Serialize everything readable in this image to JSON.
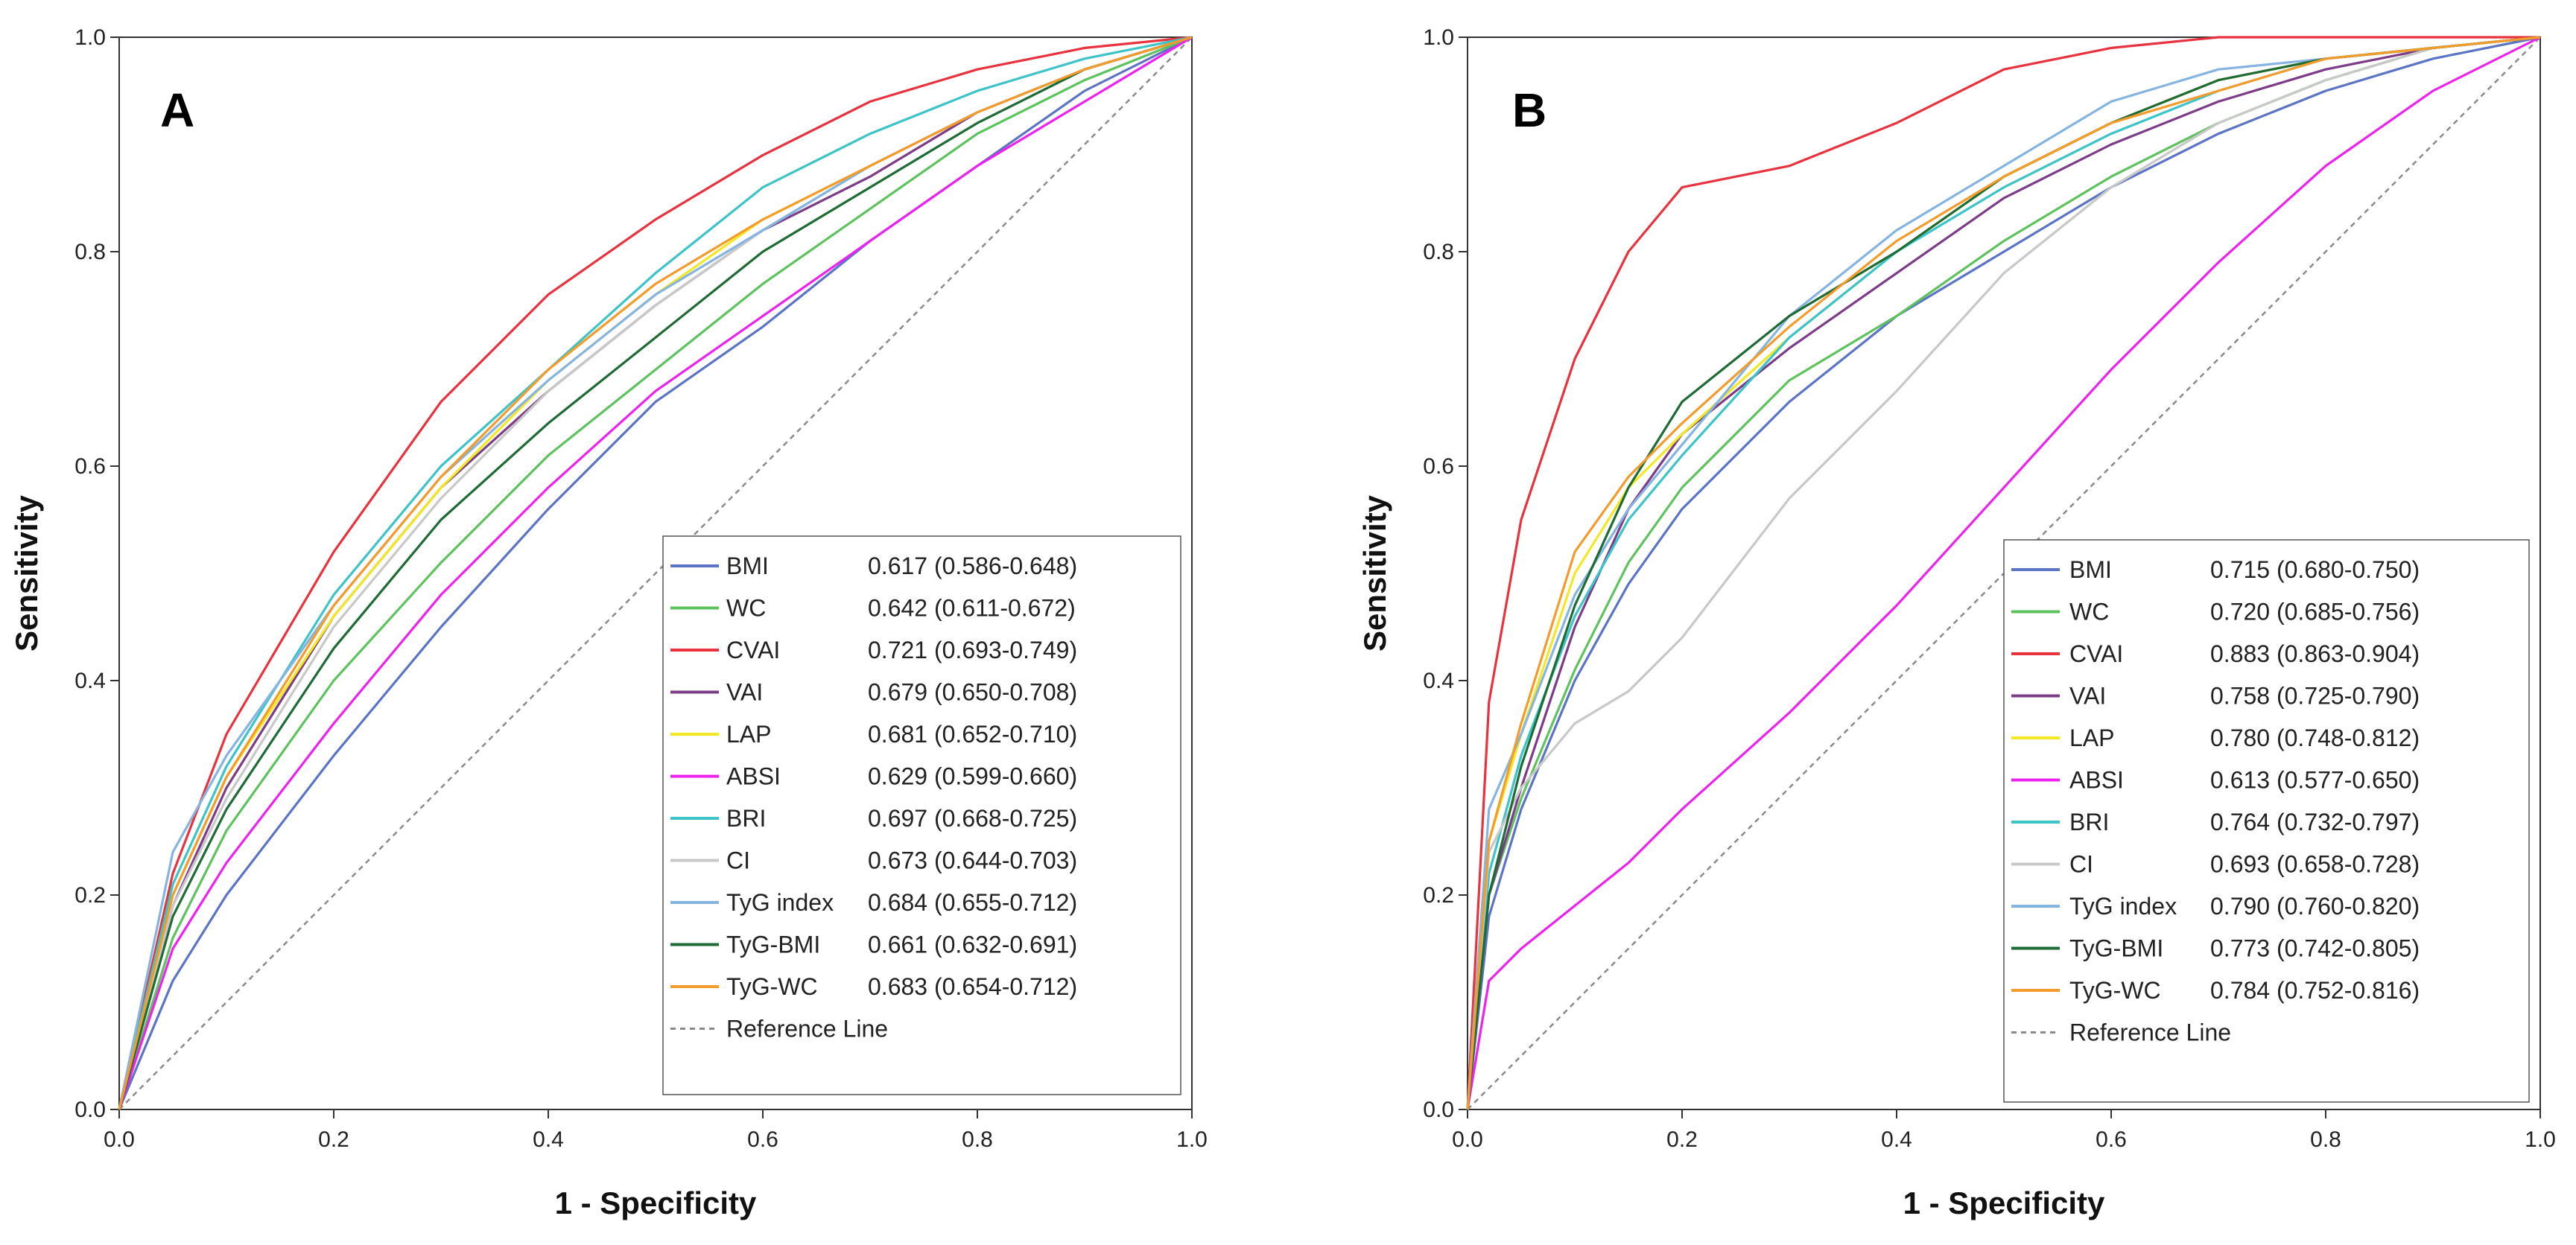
{
  "figure_panels": [
    {
      "letter": "A",
      "xlabel": "1 - Specificity",
      "ylabel": "Sensitivity"
    },
    {
      "letter": "B",
      "xlabel": "1 - Specificity",
      "ylabel": "Sensitivity"
    }
  ],
  "chart_data": [
    {
      "type": "line",
      "panel": "A",
      "title": "",
      "xlabel": "1 - Specificity",
      "ylabel": "Sensitivity",
      "xlim": [
        0.0,
        1.0
      ],
      "ylim": [
        0.0,
        1.0
      ],
      "xticks": [
        "0.0",
        "0.2",
        "0.4",
        "0.6",
        "0.8",
        "1.0"
      ],
      "yticks": [
        "0.0",
        "0.2",
        "0.4",
        "0.6",
        "0.8",
        "1.0"
      ],
      "grid": false,
      "legend_position": "bottom-right",
      "reference_line_label": "Reference Line",
      "series": [
        {
          "name": "BMI",
          "auc": "0.617 (0.586-0.648)",
          "color": "#5b74c3",
          "x": [
            0,
            0.05,
            0.1,
            0.2,
            0.3,
            0.4,
            0.5,
            0.6,
            0.7,
            0.8,
            0.9,
            1.0
          ],
          "y": [
            0,
            0.12,
            0.2,
            0.33,
            0.45,
            0.56,
            0.66,
            0.73,
            0.81,
            0.88,
            0.95,
            1.0
          ]
        },
        {
          "name": "WC",
          "auc": "0.642 (0.611-0.672)",
          "color": "#5ec25e",
          "x": [
            0,
            0.05,
            0.1,
            0.2,
            0.3,
            0.4,
            0.5,
            0.6,
            0.7,
            0.8,
            0.9,
            1.0
          ],
          "y": [
            0,
            0.16,
            0.26,
            0.4,
            0.51,
            0.61,
            0.69,
            0.77,
            0.84,
            0.91,
            0.96,
            1.0
          ]
        },
        {
          "name": "CVAI",
          "auc": "0.721 (0.693-0.749)",
          "color": "#e8323e",
          "x": [
            0,
            0.05,
            0.1,
            0.2,
            0.3,
            0.4,
            0.5,
            0.6,
            0.7,
            0.8,
            0.9,
            1.0
          ],
          "y": [
            0,
            0.22,
            0.35,
            0.52,
            0.66,
            0.76,
            0.83,
            0.89,
            0.94,
            0.97,
            0.99,
            1.0
          ]
        },
        {
          "name": "VAI",
          "auc": "0.679 (0.650-0.708)",
          "color": "#7c3c87",
          "x": [
            0,
            0.05,
            0.1,
            0.2,
            0.3,
            0.4,
            0.5,
            0.6,
            0.7,
            0.8,
            0.9,
            1.0
          ],
          "y": [
            0,
            0.19,
            0.3,
            0.46,
            0.58,
            0.67,
            0.75,
            0.82,
            0.87,
            0.93,
            0.97,
            1.0
          ]
        },
        {
          "name": "LAP",
          "auc": "0.681 (0.652-0.710)",
          "color": "#f2e824",
          "x": [
            0,
            0.05,
            0.1,
            0.2,
            0.3,
            0.4,
            0.5,
            0.6,
            0.7,
            0.8,
            0.9,
            1.0
          ],
          "y": [
            0,
            0.2,
            0.31,
            0.46,
            0.58,
            0.68,
            0.76,
            0.83,
            0.88,
            0.93,
            0.97,
            1.0
          ]
        },
        {
          "name": "ABSI",
          "auc": "0.629 (0.599-0.660)",
          "color": "#ee22ee",
          "x": [
            0,
            0.05,
            0.1,
            0.2,
            0.3,
            0.4,
            0.5,
            0.6,
            0.7,
            0.8,
            0.9,
            1.0
          ],
          "y": [
            0,
            0.15,
            0.23,
            0.36,
            0.48,
            0.58,
            0.67,
            0.74,
            0.81,
            0.88,
            0.94,
            1.0
          ]
        },
        {
          "name": "BRI",
          "auc": "0.697 (0.668-0.725)",
          "color": "#3cc4c9",
          "x": [
            0,
            0.05,
            0.1,
            0.2,
            0.3,
            0.4,
            0.5,
            0.6,
            0.7,
            0.8,
            0.9,
            1.0
          ],
          "y": [
            0,
            0.21,
            0.32,
            0.48,
            0.6,
            0.69,
            0.78,
            0.86,
            0.91,
            0.95,
            0.98,
            1.0
          ]
        },
        {
          "name": "CI",
          "auc": "0.673 (0.644-0.703)",
          "color": "#c8c8c8",
          "x": [
            0,
            0.05,
            0.1,
            0.2,
            0.3,
            0.4,
            0.5,
            0.6,
            0.7,
            0.8,
            0.9,
            1.0
          ],
          "y": [
            0,
            0.19,
            0.29,
            0.45,
            0.57,
            0.67,
            0.75,
            0.82,
            0.88,
            0.93,
            0.97,
            1.0
          ]
        },
        {
          "name": "TyG index",
          "auc": "0.684 (0.655-0.712)",
          "color": "#86b4e0",
          "x": [
            0,
            0.05,
            0.1,
            0.2,
            0.3,
            0.4,
            0.5,
            0.6,
            0.7,
            0.8,
            0.9,
            1.0
          ],
          "y": [
            0,
            0.24,
            0.33,
            0.47,
            0.59,
            0.68,
            0.76,
            0.82,
            0.88,
            0.93,
            0.97,
            1.0
          ]
        },
        {
          "name": "TyG-BMI",
          "auc": "0.661 (0.632-0.691)",
          "color": "#1e6b35",
          "x": [
            0,
            0.05,
            0.1,
            0.2,
            0.3,
            0.4,
            0.5,
            0.6,
            0.7,
            0.8,
            0.9,
            1.0
          ],
          "y": [
            0,
            0.18,
            0.28,
            0.43,
            0.55,
            0.64,
            0.72,
            0.8,
            0.86,
            0.92,
            0.97,
            1.0
          ]
        },
        {
          "name": "TyG-WC",
          "auc": "0.683 (0.654-0.712)",
          "color": "#f39c2b",
          "x": [
            0,
            0.05,
            0.1,
            0.2,
            0.3,
            0.4,
            0.5,
            0.6,
            0.7,
            0.8,
            0.9,
            1.0
          ],
          "y": [
            0,
            0.2,
            0.31,
            0.47,
            0.59,
            0.69,
            0.77,
            0.83,
            0.88,
            0.93,
            0.97,
            1.0
          ]
        }
      ]
    },
    {
      "type": "line",
      "panel": "B",
      "title": "",
      "xlabel": "1 - Specificity",
      "ylabel": "Sensitivity",
      "xlim": [
        0.0,
        1.0
      ],
      "ylim": [
        0.0,
        1.0
      ],
      "xticks": [
        "0.0",
        "0.2",
        "0.4",
        "0.6",
        "0.8",
        "1.0"
      ],
      "yticks": [
        "0.0",
        "0.2",
        "0.4",
        "0.6",
        "0.8",
        "1.0"
      ],
      "grid": false,
      "legend_position": "bottom-right",
      "reference_line_label": "Reference Line",
      "series": [
        {
          "name": "BMI",
          "auc": "0.715 (0.680-0.750)",
          "color": "#5b74c3",
          "x": [
            0,
            0.02,
            0.05,
            0.1,
            0.15,
            0.2,
            0.3,
            0.4,
            0.5,
            0.6,
            0.7,
            0.8,
            0.9,
            1.0
          ],
          "y": [
            0,
            0.18,
            0.28,
            0.4,
            0.49,
            0.56,
            0.66,
            0.74,
            0.8,
            0.86,
            0.91,
            0.95,
            0.98,
            1.0
          ]
        },
        {
          "name": "WC",
          "auc": "0.720 (0.685-0.756)",
          "color": "#5ec25e",
          "x": [
            0,
            0.02,
            0.05,
            0.1,
            0.15,
            0.2,
            0.3,
            0.4,
            0.5,
            0.6,
            0.7,
            0.8,
            0.9,
            1.0
          ],
          "y": [
            0,
            0.2,
            0.29,
            0.41,
            0.51,
            0.58,
            0.68,
            0.74,
            0.81,
            0.87,
            0.92,
            0.96,
            0.99,
            1.0
          ]
        },
        {
          "name": "CVAI",
          "auc": "0.883 (0.863-0.904)",
          "color": "#e8323e",
          "x": [
            0,
            0.02,
            0.05,
            0.1,
            0.15,
            0.2,
            0.25,
            0.3,
            0.4,
            0.5,
            0.6,
            0.7,
            0.8,
            0.9,
            1.0
          ],
          "y": [
            0,
            0.38,
            0.55,
            0.7,
            0.8,
            0.86,
            0.87,
            0.88,
            0.92,
            0.97,
            0.99,
            1.0,
            1.0,
            1.0,
            1.0
          ]
        },
        {
          "name": "VAI",
          "auc": "0.758 (0.725-0.790)",
          "color": "#7c3c87",
          "x": [
            0,
            0.02,
            0.05,
            0.1,
            0.15,
            0.2,
            0.3,
            0.4,
            0.5,
            0.6,
            0.7,
            0.8,
            0.9,
            1.0
          ],
          "y": [
            0,
            0.2,
            0.3,
            0.45,
            0.56,
            0.63,
            0.71,
            0.78,
            0.85,
            0.9,
            0.94,
            0.97,
            0.99,
            1.0
          ]
        },
        {
          "name": "LAP",
          "auc": "0.780 (0.748-0.812)",
          "color": "#f2e824",
          "x": [
            0,
            0.02,
            0.05,
            0.1,
            0.15,
            0.2,
            0.3,
            0.4,
            0.5,
            0.6,
            0.7,
            0.8,
            0.9,
            1.0
          ],
          "y": [
            0,
            0.25,
            0.35,
            0.5,
            0.58,
            0.63,
            0.72,
            0.8,
            0.87,
            0.92,
            0.96,
            0.98,
            0.99,
            1.0
          ]
        },
        {
          "name": "ABSI",
          "auc": "0.613 (0.577-0.650)",
          "color": "#ee22ee",
          "x": [
            0,
            0.02,
            0.05,
            0.1,
            0.15,
            0.2,
            0.3,
            0.4,
            0.5,
            0.6,
            0.7,
            0.8,
            0.9,
            1.0
          ],
          "y": [
            0,
            0.12,
            0.15,
            0.19,
            0.23,
            0.28,
            0.37,
            0.47,
            0.58,
            0.69,
            0.79,
            0.88,
            0.95,
            1.0
          ]
        },
        {
          "name": "BRI",
          "auc": "0.764 (0.732-0.797)",
          "color": "#3cc4c9",
          "x": [
            0,
            0.02,
            0.05,
            0.1,
            0.15,
            0.2,
            0.3,
            0.4,
            0.5,
            0.6,
            0.7,
            0.8,
            0.9,
            1.0
          ],
          "y": [
            0,
            0.22,
            0.33,
            0.46,
            0.55,
            0.61,
            0.72,
            0.8,
            0.86,
            0.91,
            0.95,
            0.98,
            0.99,
            1.0
          ]
        },
        {
          "name": "CI",
          "auc": "0.693 (0.658-0.728)",
          "color": "#c8c8c8",
          "x": [
            0,
            0.02,
            0.05,
            0.1,
            0.15,
            0.2,
            0.3,
            0.4,
            0.5,
            0.6,
            0.7,
            0.8,
            0.9,
            1.0
          ],
          "y": [
            0,
            0.24,
            0.3,
            0.36,
            0.39,
            0.44,
            0.57,
            0.67,
            0.78,
            0.86,
            0.92,
            0.96,
            0.99,
            1.0
          ]
        },
        {
          "name": "TyG index",
          "auc": "0.790 (0.760-0.820)",
          "color": "#86b4e0",
          "x": [
            0,
            0.02,
            0.05,
            0.1,
            0.15,
            0.2,
            0.3,
            0.4,
            0.5,
            0.6,
            0.7,
            0.8,
            0.9,
            1.0
          ],
          "y": [
            0,
            0.28,
            0.35,
            0.48,
            0.56,
            0.62,
            0.74,
            0.82,
            0.88,
            0.94,
            0.97,
            0.98,
            0.99,
            1.0
          ]
        },
        {
          "name": "TyG-BMI",
          "auc": "0.773 (0.742-0.805)",
          "color": "#1e6b35",
          "x": [
            0,
            0.02,
            0.05,
            0.1,
            0.15,
            0.2,
            0.3,
            0.4,
            0.5,
            0.6,
            0.7,
            0.8,
            0.9,
            1.0
          ],
          "y": [
            0,
            0.2,
            0.32,
            0.47,
            0.58,
            0.66,
            0.74,
            0.8,
            0.87,
            0.92,
            0.96,
            0.98,
            0.99,
            1.0
          ]
        },
        {
          "name": "TyG-WC",
          "auc": "0.784 (0.752-0.816)",
          "color": "#f39c2b",
          "x": [
            0,
            0.02,
            0.05,
            0.1,
            0.15,
            0.2,
            0.3,
            0.4,
            0.5,
            0.6,
            0.7,
            0.8,
            0.9,
            1.0
          ],
          "y": [
            0,
            0.25,
            0.36,
            0.52,
            0.59,
            0.64,
            0.73,
            0.81,
            0.87,
            0.92,
            0.95,
            0.98,
            0.99,
            1.0
          ]
        }
      ]
    }
  ]
}
